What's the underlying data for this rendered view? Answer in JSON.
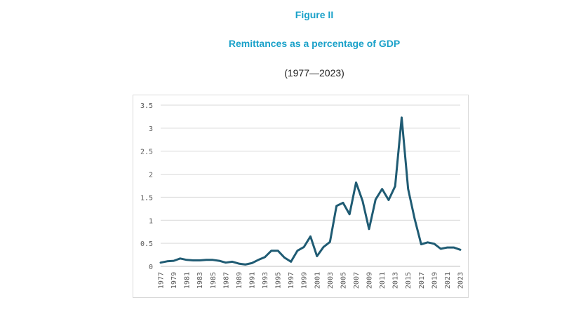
{
  "figure_label": "Figure II",
  "title": "Remittances as a percentage of GDP",
  "subtitle": "(1977—2023)",
  "chart_data": {
    "type": "line",
    "x": [
      1977,
      1978,
      1979,
      1980,
      1981,
      1982,
      1983,
      1984,
      1985,
      1986,
      1987,
      1988,
      1989,
      1990,
      1991,
      1992,
      1993,
      1994,
      1995,
      1996,
      1997,
      1998,
      1999,
      2000,
      2001,
      2002,
      2003,
      2004,
      2005,
      2006,
      2007,
      2008,
      2009,
      2010,
      2011,
      2012,
      2013,
      2014,
      2015,
      2016,
      2017,
      2018,
      2019,
      2020,
      2021,
      2022,
      2023
    ],
    "series": [
      {
        "values": [
          0.08,
          0.11,
          0.12,
          0.17,
          0.14,
          0.13,
          0.13,
          0.14,
          0.14,
          0.12,
          0.08,
          0.1,
          0.06,
          0.04,
          0.07,
          0.14,
          0.2,
          0.34,
          0.34,
          0.19,
          0.1,
          0.34,
          0.42,
          0.65,
          0.22,
          0.42,
          0.53,
          1.31,
          1.38,
          1.13,
          1.82,
          1.42,
          0.81,
          1.45,
          1.68,
          1.44,
          1.74,
          3.23,
          1.68,
          1.03,
          0.48,
          0.52,
          0.49,
          0.38,
          0.41,
          0.41,
          0.36
        ],
        "color": "#1f5b73"
      }
    ],
    "x_tick_labels": [
      "1977",
      "1979",
      "1981",
      "1983",
      "1985",
      "1987",
      "1989",
      "1991",
      "1993",
      "1995",
      "1997",
      "1999",
      "2001",
      "2003",
      "2005",
      "2007",
      "2009",
      "2011",
      "2013",
      "2015",
      "2017",
      "2019",
      "2021",
      "2023"
    ],
    "y_tick_labels": [
      "0",
      "0.5",
      "1",
      "1.5",
      "2",
      "2.5",
      "3",
      "3.5"
    ],
    "ylim": [
      0,
      3.5
    ],
    "grid": "horizontal",
    "legend": "none"
  }
}
